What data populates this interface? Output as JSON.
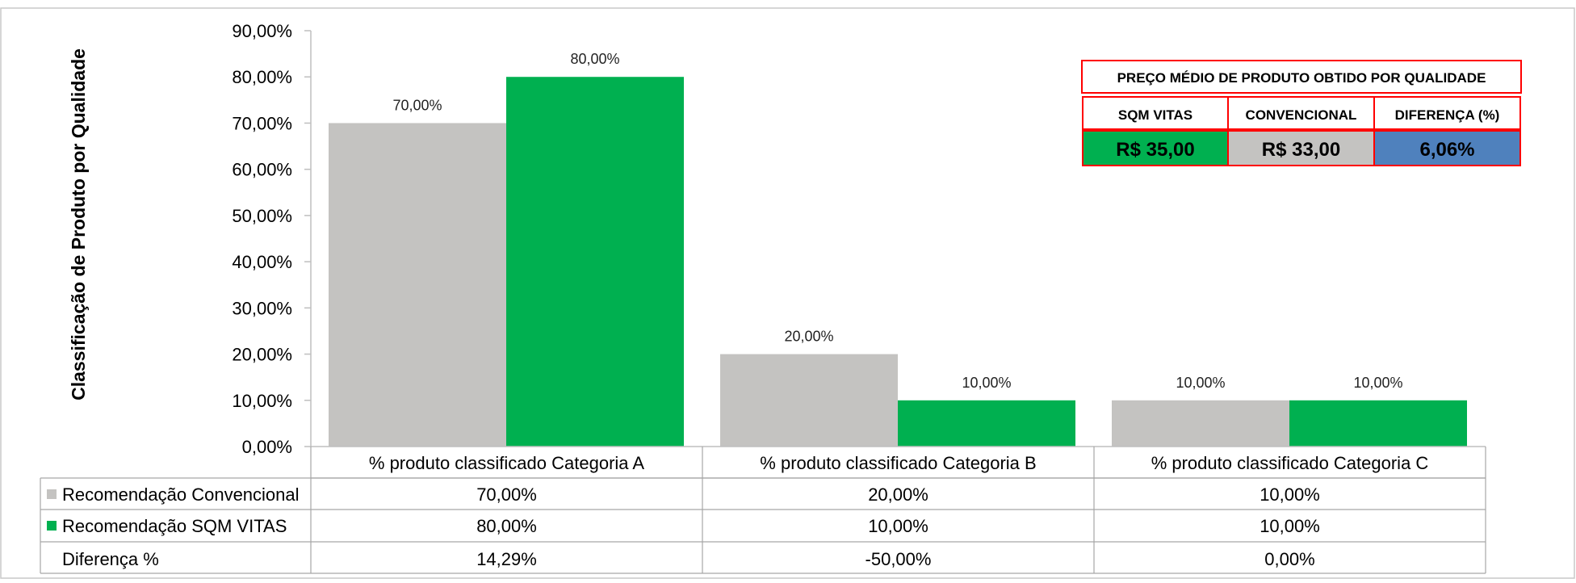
{
  "colors": {
    "conventional": "#c4c3c1",
    "sqm": "#00b050",
    "blue": "#4f81bd",
    "panel_border": "#ff0000"
  },
  "chart_data": {
    "type": "bar",
    "ylabel": "Classificação de Produto por Qualidade",
    "ylim": [
      0,
      90
    ],
    "ytick_labels": [
      "0,00%",
      "10,00%",
      "20,00%",
      "30,00%",
      "40,00%",
      "50,00%",
      "60,00%",
      "70,00%",
      "80,00%",
      "90,00%"
    ],
    "categories": [
      "% produto classificado Categoria A",
      "% produto classificado Categoria B",
      "% produto classificado Categoria C"
    ],
    "series": [
      {
        "name": "Recomendação Convencional",
        "values": [
          70,
          20,
          10
        ],
        "labels": [
          "70,00%",
          "20,00%",
          "10,00%"
        ]
      },
      {
        "name": "Recomendação SQM VITAS",
        "values": [
          80,
          10,
          10
        ],
        "labels": [
          "80,00%",
          "10,00%",
          "10,00%"
        ]
      }
    ],
    "data_table": {
      "diff_row_name": "Diferença %",
      "diff_values": [
        "14,29%",
        "-50,00%",
        "0,00%"
      ]
    },
    "grid": false,
    "legend": "data-table"
  },
  "price_panel": {
    "title": "PREÇO MÉDIO DE PRODUTO OBTIDO POR QUALIDADE",
    "headers": [
      "SQM VITAS",
      "CONVENCIONAL",
      "DIFERENÇA (%)"
    ],
    "values": [
      "R$ 35,00",
      "R$ 33,00",
      "6,06%"
    ]
  }
}
